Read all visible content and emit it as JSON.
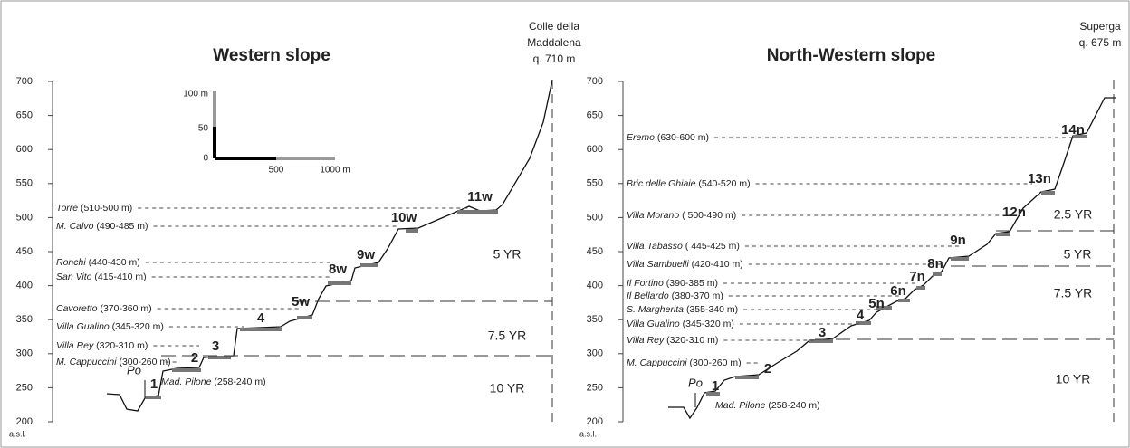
{
  "panels": [
    {
      "title": "Western slope",
      "summit": [
        "Colle della",
        "Maddalena",
        "q. 710 m"
      ],
      "yticks": [
        200,
        250,
        300,
        350,
        400,
        450,
        500,
        550,
        600,
        650,
        700
      ],
      "axis_unit": "a.s.l.",
      "river": "Po",
      "places": [
        {
          "name": "Torre",
          "range": " (510-500 m)"
        },
        {
          "name": "M. Calvo",
          "range": " (490-485 m)"
        },
        {
          "name": "Ronchi",
          "range": " (440-430 m)"
        },
        {
          "name": "San Vito",
          "range": " (415-410 m)"
        },
        {
          "name": "Cavoretto",
          "range": " (370-360 m)"
        },
        {
          "name": "Villa Gualino",
          "range": " (345-320 m)"
        },
        {
          "name": "Villa Rey",
          "range": " (320-310 m)"
        },
        {
          "name": "M. Cappuccini",
          "range": " (300-260 m)"
        },
        {
          "name": "Mad. Pilone",
          "range": " (258-240 m)"
        }
      ],
      "terraces": [
        "1",
        "2",
        "3",
        "4",
        "5w",
        "8w",
        "9w",
        "10w",
        "11w"
      ],
      "zones": [
        "5 YR",
        "7.5 YR",
        "10 YR"
      ],
      "scale_bar": {
        "vertical": [
          "100 m",
          "50",
          "0"
        ],
        "horizontal": [
          "500",
          "1000 m"
        ]
      }
    },
    {
      "title": "North-Western slope",
      "summit": [
        "Superga",
        "q. 675 m"
      ],
      "yticks": [
        200,
        250,
        300,
        350,
        400,
        450,
        500,
        550,
        600,
        650,
        700
      ],
      "axis_unit": "a.s.l.",
      "river": "Po",
      "places": [
        {
          "name": "Eremo",
          "range": " (630-600 m)"
        },
        {
          "name": "Bric delle Ghiaie",
          "range": " (540-520 m)"
        },
        {
          "name": "Villa Morano",
          "range": " ( 500-490 m)"
        },
        {
          "name": "Villa Tabasso",
          "range": " ( 445-425 m)"
        },
        {
          "name": "Villa Sambuelli",
          "range": " (420-410 m)"
        },
        {
          "name": "Il Fortino",
          "range": " (390-385 m)"
        },
        {
          "name": "Il Bellardo",
          "range": " (380-370 m)"
        },
        {
          "name": "S. Margherita",
          "range": " (355-340 m)"
        },
        {
          "name": "Villa Gualino",
          "range": " (345-320 m)"
        },
        {
          "name": "Villa Rey",
          "range": " (320-310 m)"
        },
        {
          "name": "M. Cappuccini",
          "range": " (300-260 m)"
        },
        {
          "name": "Mad. Pilone",
          "range": " (258-240 m)"
        }
      ],
      "terraces": [
        "1",
        "2",
        "3",
        "4",
        "5n",
        "6n",
        "7n",
        "8n",
        "9n",
        "12n",
        "13n",
        "14n"
      ],
      "zones": [
        "2.5 YR",
        "5 YR",
        "7.5 YR",
        "10 YR"
      ]
    }
  ]
}
